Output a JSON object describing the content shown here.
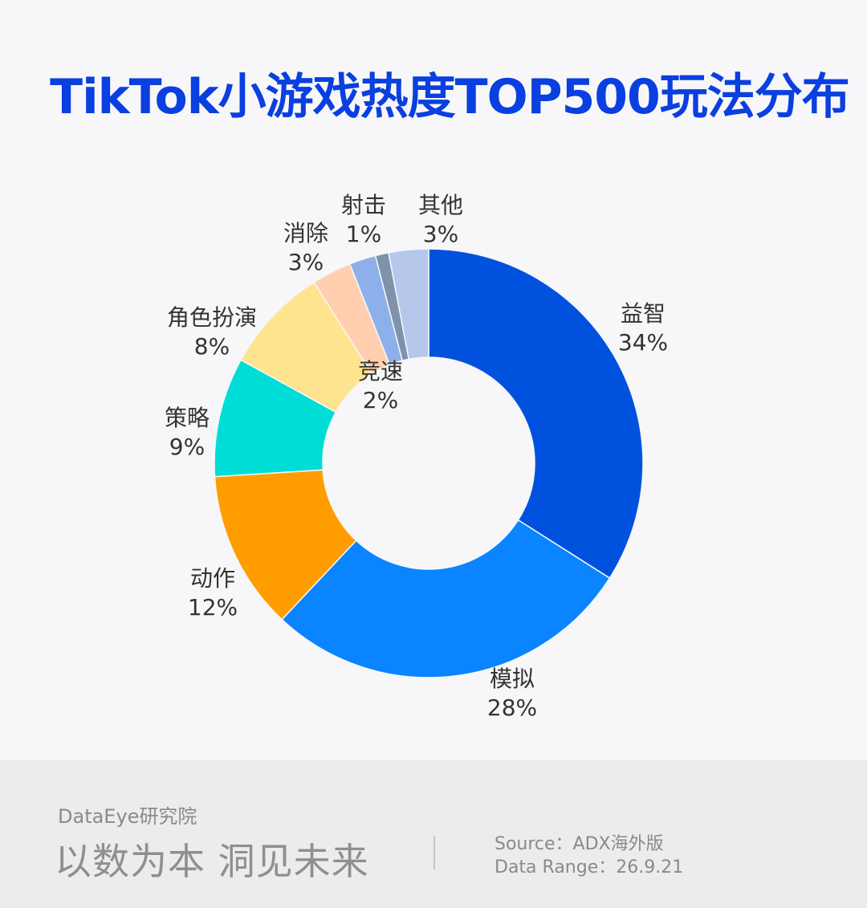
{
  "title": "TikTok小游戏热度TOP500玩法分布",
  "chart_data": {
    "type": "pie",
    "title": "TikTok小游戏热度TOP500玩法分布",
    "donut": true,
    "slices": [
      {
        "label": "益智",
        "value": 34,
        "value_label": "34%",
        "color": "#0052de"
      },
      {
        "label": "模拟",
        "value": 28,
        "value_label": "28%",
        "color": "#0a84ff"
      },
      {
        "label": "动作",
        "value": 12,
        "value_label": "12%",
        "color": "#ff9d00"
      },
      {
        "label": "策略",
        "value": 9,
        "value_label": "9%",
        "color": "#00ddd7"
      },
      {
        "label": "角色扮演",
        "value": 8,
        "value_label": "8%",
        "color": "#ffe48f"
      },
      {
        "label": "消除",
        "value": 3,
        "value_label": "3%",
        "color": "#ffcfb0"
      },
      {
        "label": "竞速",
        "value": 2,
        "value_label": "2%",
        "color": "#8eb0ea"
      },
      {
        "label": "射击",
        "value": 1,
        "value_label": "1%",
        "color": "#7e93aa"
      },
      {
        "label": "其他",
        "value": 3,
        "value_label": "3%",
        "color": "#b5c8ec"
      }
    ]
  },
  "footer": {
    "brand": "DataEye研究院",
    "slogan": "以数为本 洞见未来",
    "source": "Source：ADX海外版",
    "range": "Data Range：26.9.21"
  }
}
